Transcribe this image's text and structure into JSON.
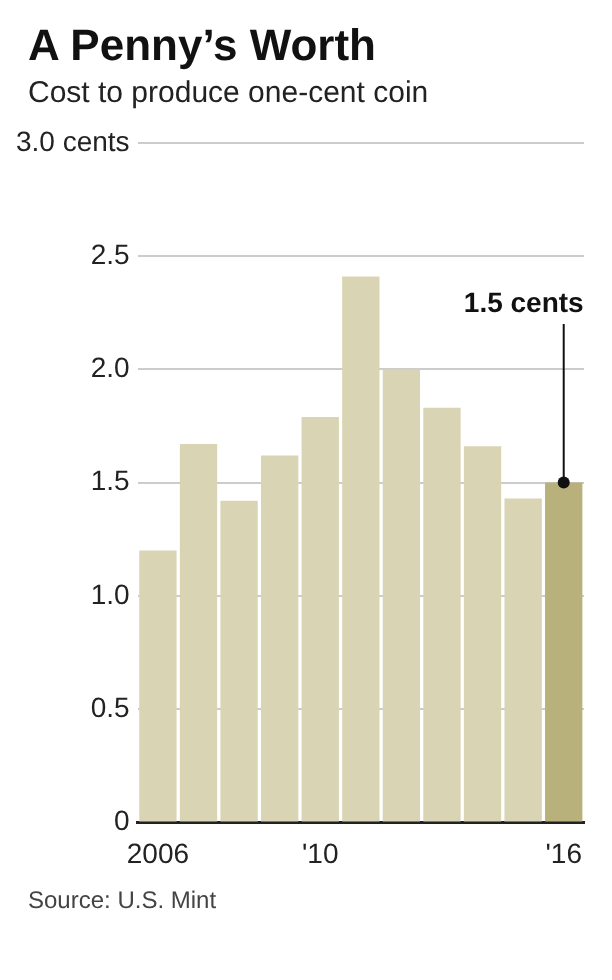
{
  "chart_data": {
    "type": "bar",
    "title": "A Penny’s Worth",
    "subtitle": "Cost to produce one-cent coin",
    "categories": [
      "2006",
      null,
      null,
      null,
      "'10",
      null,
      null,
      null,
      null,
      null,
      "'16"
    ],
    "values": [
      1.2,
      1.67,
      1.42,
      1.62,
      1.79,
      2.41,
      2.0,
      1.83,
      1.66,
      1.43,
      1.5
    ],
    "colors": [
      "#d9d4b3",
      "#d9d4b3",
      "#d9d4b3",
      "#d9d4b3",
      "#d9d4b3",
      "#d9d4b3",
      "#d9d4b3",
      "#d9d4b3",
      "#d9d4b3",
      "#d9d4b3",
      "#b8b17c"
    ],
    "ylim": [
      0,
      3
    ],
    "yticks": [
      0,
      0.5,
      {
        "value": 1,
        "label": "1.0"
      },
      1.5,
      {
        "value": 2,
        "label": "2.0"
      },
      2.5,
      {
        "value": 3,
        "label": "3.0 cents"
      }
    ],
    "grid": "y",
    "legend": false,
    "annotations": [
      {
        "text": "1.5 cents",
        "x": "'16",
        "y": 1.5
      },
      "Source: U.S. Mint"
    ]
  }
}
